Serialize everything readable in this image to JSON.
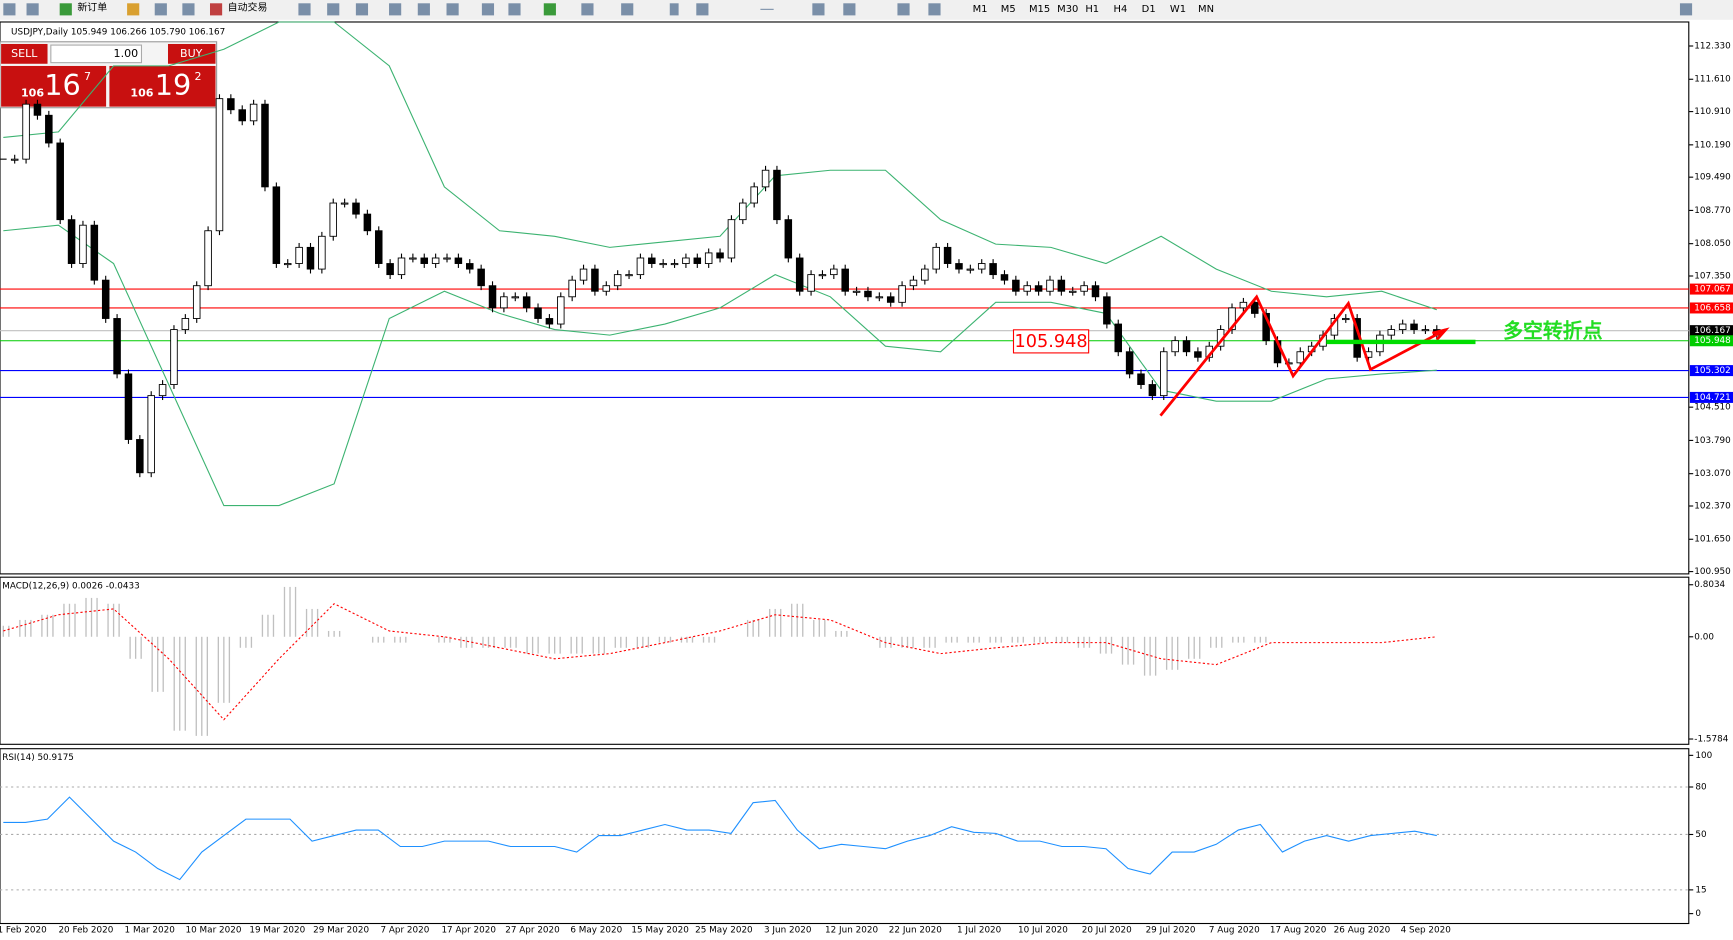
{
  "toolbar": {
    "new_order": "新订单",
    "auto_trading": "自动交易",
    "timeframes": [
      "M1",
      "M5",
      "M15",
      "M30",
      "H1",
      "H4",
      "D1",
      "W1",
      "MN"
    ]
  },
  "trade_panel": {
    "sell": "SELL",
    "buy": "BUY",
    "lots": "1.00",
    "sell_big": "106",
    "sell_pips": "16",
    "sell_frac": "7",
    "buy_big": "106",
    "buy_pips": "19",
    "buy_frac": "2"
  },
  "chart": {
    "header": "USDJPY,Daily 105.949 106.266 105.790 106.167",
    "ylim": [
      100.9,
      112.85
    ],
    "yticks": [
      {
        "value": 112.33,
        "label": "112.330"
      },
      {
        "value": 111.61,
        "label": "111.610"
      },
      {
        "value": 110.91,
        "label": "110.910"
      },
      {
        "value": 110.19,
        "label": "110.190"
      },
      {
        "value": 109.49,
        "label": "109.490"
      },
      {
        "value": 108.77,
        "label": "108.770"
      },
      {
        "value": 108.05,
        "label": "108.050"
      },
      {
        "value": 107.35,
        "label": "107.350"
      },
      {
        "value": 104.51,
        "label": "104.510"
      },
      {
        "value": 103.79,
        "label": "103.790"
      },
      {
        "value": 103.07,
        "label": "103.070"
      },
      {
        "value": 102.37,
        "label": "102.370"
      },
      {
        "value": 101.65,
        "label": "101.650"
      },
      {
        "value": 100.95,
        "label": "100.950"
      }
    ],
    "levels": [
      {
        "value": 107.067,
        "label": "107.067",
        "color": "#ff0000",
        "text_color": "#ffffff"
      },
      {
        "value": 106.658,
        "label": "106.658",
        "color": "#ff0000",
        "text_color": "#ffffff"
      },
      {
        "value": 106.167,
        "label": "106.167",
        "color": "#c0c0c0",
        "label_bg": "#000000",
        "text_color": "#ffffff"
      },
      {
        "value": 105.948,
        "label": "105.948",
        "color": "#00cc00",
        "text_color": "#ffffff"
      },
      {
        "value": 105.302,
        "label": "105.302",
        "color": "#0000ff",
        "text_color": "#ffffff"
      },
      {
        "value": 104.721,
        "label": "104.721",
        "color": "#0000ff",
        "text_color": "#ffffff"
      }
    ],
    "closes": [
      109.88,
      109.88,
      111.07,
      110.83,
      110.23,
      108.57,
      107.62,
      108.45,
      107.26,
      106.43,
      105.23,
      103.81,
      103.09,
      104.76,
      105.0,
      106.19,
      106.43,
      107.14,
      108.33,
      111.19,
      110.95,
      110.71,
      111.07,
      109.28,
      107.62,
      107.62,
      107.97,
      107.5,
      108.21,
      108.93,
      108.93,
      108.69,
      108.33,
      107.62,
      107.38,
      107.74,
      107.74,
      107.62,
      107.74,
      107.74,
      107.62,
      107.5,
      107.14,
      106.66,
      106.9,
      106.9,
      106.66,
      106.43,
      106.31,
      106.9,
      107.26,
      107.5,
      107.02,
      107.14,
      107.38,
      107.38,
      107.74,
      107.62,
      107.62,
      107.62,
      107.74,
      107.62,
      107.85,
      107.74,
      108.57,
      108.93,
      109.28,
      109.64,
      108.57,
      107.74,
      107.02,
      107.38,
      107.38,
      107.5,
      107.02,
      107.02,
      106.9,
      106.9,
      106.78,
      107.14,
      107.26,
      107.5,
      107.97,
      107.62,
      107.5,
      107.5,
      107.62,
      107.38,
      107.26,
      107.02,
      107.14,
      107.02,
      107.26,
      107.02,
      107.02,
      107.14,
      106.9,
      106.31,
      105.71,
      105.23,
      105.0,
      104.76,
      105.71,
      105.95,
      105.71,
      105.59,
      105.83,
      106.19,
      106.66,
      106.78,
      106.54,
      105.95,
      105.47,
      105.47,
      105.71,
      105.83,
      106.07,
      106.43,
      106.43,
      105.59,
      105.71,
      106.07,
      106.19,
      106.31,
      106.19,
      106.19,
      106.07
    ],
    "band_upper": [
      110.35,
      110.47,
      111.9,
      111.9,
      112.26,
      112.85,
      112.85,
      111.9,
      109.28,
      108.33,
      108.21,
      107.97,
      108.09,
      108.21,
      109.52,
      109.64,
      109.64,
      108.57,
      108.04,
      107.97,
      107.62,
      108.21,
      107.5,
      107.02,
      106.9,
      107.02,
      106.62
    ],
    "band_lower": [
      108.33,
      108.45,
      107.62,
      105.0,
      102.38,
      102.38,
      102.85,
      106.43,
      107.02,
      106.54,
      106.19,
      106.07,
      106.31,
      106.66,
      107.38,
      106.9,
      105.83,
      105.71,
      106.78,
      106.78,
      106.54,
      104.88,
      104.64,
      104.64,
      105.12,
      105.23,
      105.31
    ],
    "annotation_box": "105.948",
    "annotation_text": "多空转折点",
    "x_labels": [
      "1 Feb 2020",
      "20 Feb 2020",
      "1 Mar 2020",
      "10 Mar 2020",
      "19 Mar 2020",
      "29 Mar 2020",
      "7 Apr 2020",
      "17 Apr 2020",
      "27 Apr 2020",
      "6 May 2020",
      "15 May 2020",
      "25 May 2020",
      "3 Jun 2020",
      "12 Jun 2020",
      "22 Jun 2020",
      "1 Jul 2020",
      "10 Jul 2020",
      "20 Jul 2020",
      "29 Jul 2020",
      "7 Aug 2020",
      "17 Aug 2020",
      "26 Aug 2020",
      "4 Sep 2020"
    ]
  },
  "macd": {
    "label": "MACD(12,26,9) 0.0026 -0.0433",
    "ylim": [
      -1.66,
      0.92
    ],
    "yticks": [
      0.8034,
      {
        "value": 0,
        "label": "0.00"
      },
      -1.5784
    ],
    "histogram": [
      0.17,
      0.26,
      0.34,
      0.51,
      0.6,
      0.51,
      -0.34,
      -0.85,
      -1.45,
      -1.53,
      -1.02,
      -0.17,
      0.34,
      0.77,
      0.43,
      0.09,
      0,
      -0.09,
      -0.09,
      0,
      -0.09,
      -0.17,
      -0.17,
      -0.17,
      -0.26,
      -0.26,
      -0.26,
      -0.26,
      -0.17,
      -0.17,
      -0.09,
      -0.09,
      -0.09,
      0,
      0.26,
      0.43,
      0.51,
      0.26,
      0.09,
      0,
      -0.17,
      -0.17,
      -0.17,
      -0.09,
      -0.09,
      -0.09,
      -0.09,
      -0.09,
      -0.09,
      -0.17,
      -0.26,
      -0.43,
      -0.6,
      -0.51,
      -0.34,
      -0.17,
      -0.09,
      -0.09,
      0,
      0,
      0,
      0,
      0,
      0,
      0,
      0
    ],
    "signal": [
      0.09,
      0.34,
      0.43,
      -0.34,
      -1.28,
      -0.34,
      0.51,
      0.09,
      0,
      -0.17,
      -0.34,
      -0.26,
      -0.09,
      0.09,
      0.34,
      0.26,
      -0.09,
      -0.26,
      -0.17,
      -0.09,
      -0.09,
      -0.34,
      -0.43,
      -0.09,
      -0.09,
      -0.09,
      0
    ]
  },
  "rsi": {
    "label": "RSI(14) 50.9175",
    "ylim": [
      -6.25,
      104.2
    ],
    "yticks": [
      100,
      80,
      50,
      15,
      0
    ],
    "levels": [
      80,
      50,
      15
    ],
    "values": [
      57.6,
      57.6,
      59.7,
      73.6,
      59.7,
      45.8,
      38.9,
      28.5,
      21.5,
      38.9,
      49.3,
      59.7,
      59.7,
      59.7,
      45.8,
      49.3,
      52.8,
      52.8,
      42.4,
      42.4,
      45.8,
      45.8,
      45.8,
      42.4,
      42.4,
      42.4,
      38.9,
      49.3,
      49.3,
      52.8,
      56.3,
      52.8,
      52.8,
      50.7,
      70.1,
      71.5,
      52.8,
      41.0,
      43.8,
      42.4,
      41.0,
      45.8,
      49.3,
      54.9,
      51.4,
      50.7,
      45.8,
      45.8,
      42.4,
      42.4,
      41.0,
      28.5,
      25.0,
      38.9,
      38.9,
      43.8,
      52.8,
      56.3,
      38.9,
      45.8,
      49.3,
      45.8,
      49.3,
      50.7,
      52.1,
      49.3
    ]
  }
}
